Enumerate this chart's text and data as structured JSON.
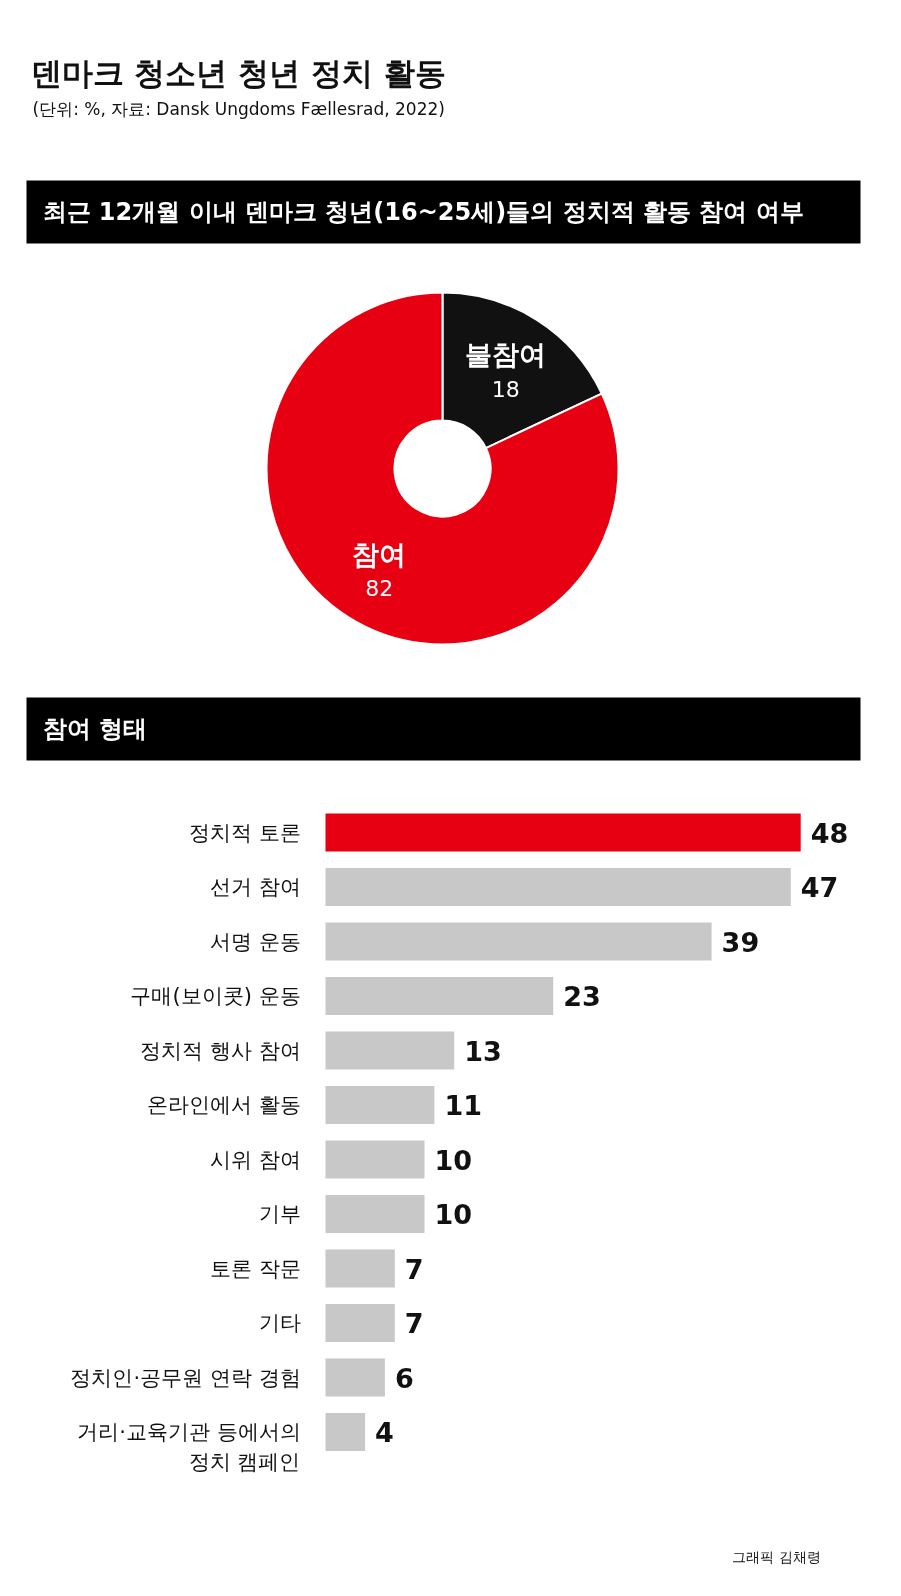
{
  "chart_data": [
    {
      "type": "donut",
      "title": "덴마크 청소년 청년 정치 활동",
      "subtitle": "(단위: %, 자료: Dansk Ungdoms Fællesrad, 2022)",
      "annotations": [
        "최근 12개월 이내 덴마크 청년(16~25세)들의 정치적 활동 참여 여부"
      ],
      "categories": [
        "불참여",
        "참여"
      ],
      "values": [
        18,
        82
      ],
      "colors": [
        "#111111",
        "#e60012"
      ],
      "data_labels": true
    },
    {
      "type": "bar",
      "orientation": "horizontal",
      "title": "참여 형태",
      "annotations": [
        "그래픽 김채령"
      ],
      "categories": [
        "정치적 토론",
        "선거 참여",
        "서명 운동",
        "구매(보이콧) 운동",
        "정치적 행사 참여",
        "온라인에서 활동",
        "시위 참여",
        "기부",
        "토론 작문",
        "기타",
        "정치인·공무원 연락 경험",
        "거리·교육기관 등에서의\n정치 캠페인"
      ],
      "values": [
        48,
        47,
        39,
        23,
        13,
        11,
        10,
        10,
        7,
        7,
        6,
        4
      ],
      "colors": [
        "#e60012",
        "#c8c8c8",
        "#c8c8c8",
        "#c8c8c8",
        "#c8c8c8",
        "#c8c8c8",
        "#c8c8c8",
        "#c8c8c8",
        "#c8c8c8",
        "#c8c8c8",
        "#c8c8c8",
        "#c8c8c8"
      ],
      "data_labels": true
    }
  ]
}
